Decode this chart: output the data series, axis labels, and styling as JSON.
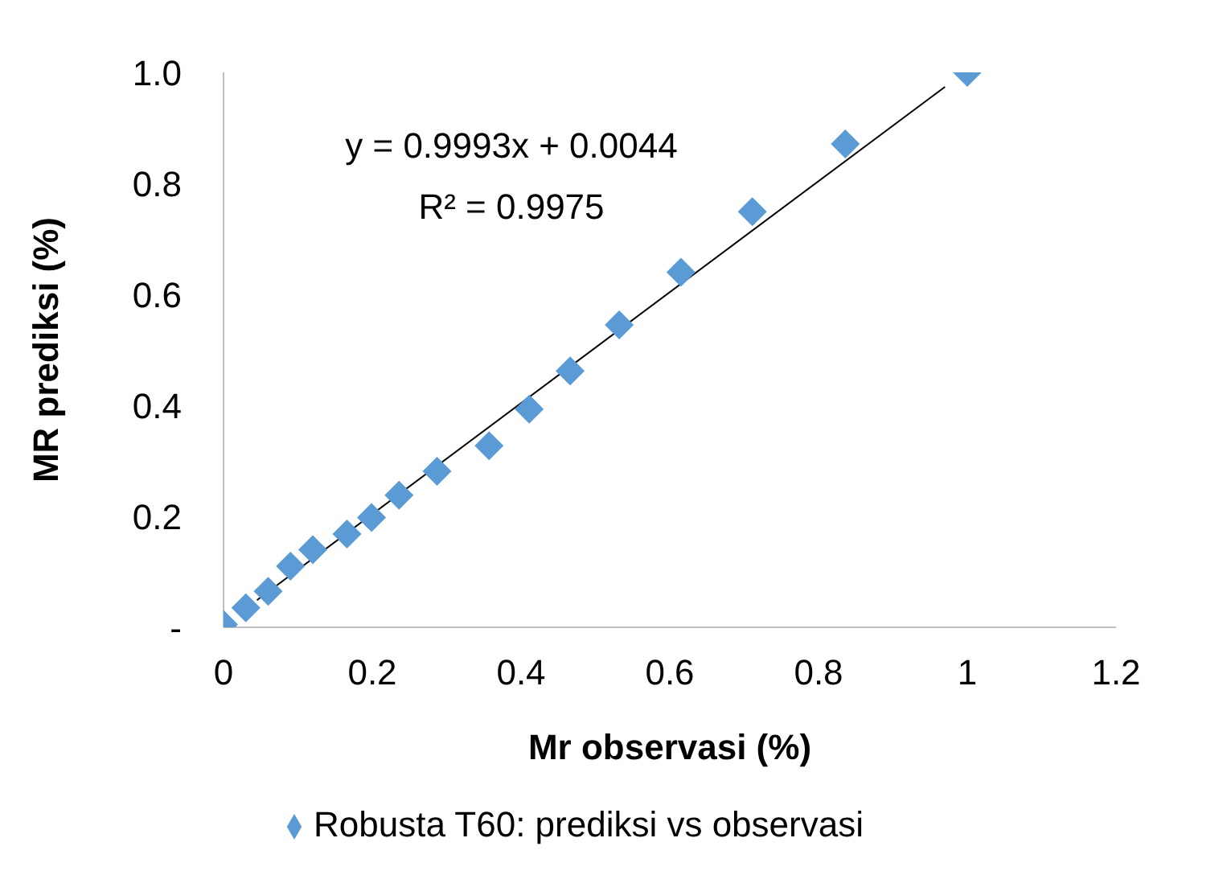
{
  "chart_data": {
    "type": "scatter",
    "xlabel": "Mr observasi (%)",
    "ylabel": "MR prediksi (%)",
    "series": [
      {
        "name": "Robusta T60: prediksi vs observasi",
        "color": "#5b9bd5",
        "marker": "diamond",
        "x": [
          0,
          0.03,
          0.06,
          0.09,
          0.12,
          0.166,
          0.199,
          0.236,
          0.287,
          0.357,
          0.411,
          0.466,
          0.532,
          0.615,
          0.711,
          0.836,
          1.0
        ],
        "values": [
          0.005,
          0.035,
          0.065,
          0.11,
          0.14,
          0.168,
          0.198,
          0.238,
          0.281,
          0.327,
          0.393,
          0.462,
          0.545,
          0.64,
          0.749,
          0.871,
          1.0
        ]
      },
      {
        "type": "line",
        "color": "#000000",
        "x": [
          0.045,
          0.97
        ],
        "values": [
          0.049,
          0.974
        ]
      }
    ],
    "annotations": [
      "y = 0.9993x + 0.0044",
      "R² = 0.9975"
    ],
    "xlim": [
      0,
      1.2
    ],
    "xticks": [
      0,
      0.2,
      0.4,
      0.6,
      0.8,
      1,
      1.2
    ],
    "ylim": [
      0,
      1
    ],
    "yticks": [
      {
        "value": 0,
        "label": "-"
      },
      0.2,
      0.4,
      0.6,
      0.8,
      {
        "value": 1,
        "label": "1.0"
      }
    ],
    "grid": false,
    "legend": "bottom"
  }
}
